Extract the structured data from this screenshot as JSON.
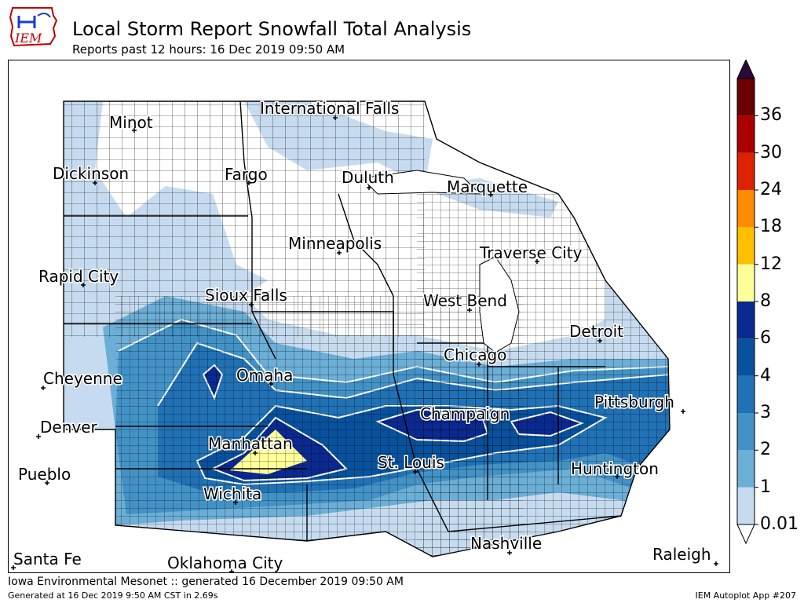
{
  "header": {
    "logo_text": "IEM",
    "title": "Local Storm Report Snowfall Total Analysis",
    "subtitle": "Reports past 12 hours: 16 Dec 2019 09:50 AM"
  },
  "colorbar": {
    "levels": [
      "0.01",
      "1",
      "2",
      "3",
      "4",
      "6",
      "8",
      "12",
      "18",
      "24",
      "30",
      "36"
    ],
    "colors": [
      "#c6dbef",
      "#6baed6",
      "#4292c6",
      "#2171b5",
      "#08519c",
      "#0b2a8f",
      "#ffff99",
      "#ffc000",
      "#ff8c00",
      "#dd2200",
      "#aa0000",
      "#6b0000"
    ],
    "extend_top_color": "#2a0a3c",
    "extend_bottom_color": "#ffffff"
  },
  "cities": [
    {
      "name": "International Falls"
    },
    {
      "name": "Minot"
    },
    {
      "name": "Dickinson"
    },
    {
      "name": "Fargo"
    },
    {
      "name": "Duluth"
    },
    {
      "name": "Marquette"
    },
    {
      "name": "Minneapolis"
    },
    {
      "name": "Traverse City"
    },
    {
      "name": "Rapid City"
    },
    {
      "name": "Sioux Falls"
    },
    {
      "name": "West Bend"
    },
    {
      "name": "Detroit"
    },
    {
      "name": "Chicago"
    },
    {
      "name": "Cheyenne"
    },
    {
      "name": "Omaha"
    },
    {
      "name": "Pittsburgh"
    },
    {
      "name": "Champaign"
    },
    {
      "name": "Denver"
    },
    {
      "name": "Manhattan"
    },
    {
      "name": "St. Louis"
    },
    {
      "name": "Huntington"
    },
    {
      "name": "Pueblo"
    },
    {
      "name": "Wichita"
    },
    {
      "name": "Nashville"
    },
    {
      "name": "Santa Fe"
    },
    {
      "name": "Oklahoma City"
    },
    {
      "name": "Raleigh"
    }
  ],
  "footer": {
    "source": "Iowa Environmental Mesonet :: generated 16 December 2019 09:50 AM",
    "generated": "Generated at 16 Dec 2019 9:50 AM CST in 2.69s",
    "app": "IEM Autoplot App #207"
  }
}
